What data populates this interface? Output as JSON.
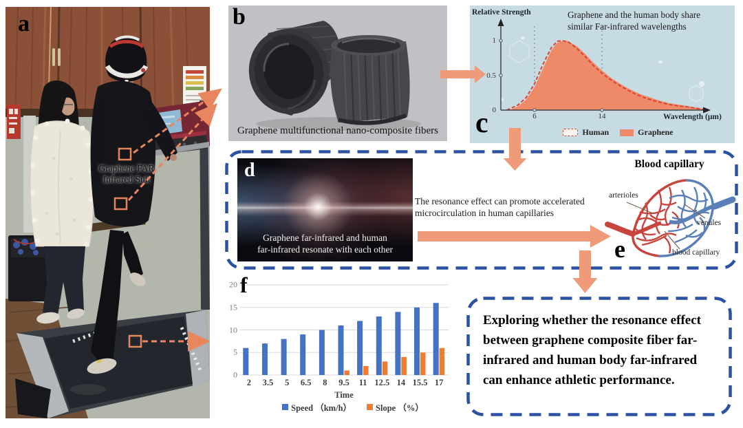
{
  "figure": {
    "type": "multi-panel scientific figure",
    "colors": {
      "flow_arrow": "#ef9b7a",
      "dashed_border_blue": "#2b52a3",
      "annotation_orange": "#e8875f",
      "panel_c_bg": "#c7dbe3",
      "graphene_fill": "#ef8a68",
      "human_dash_red": "#d94436",
      "bar_blue": "#4472c4",
      "bar_orange": "#ed7d31",
      "capillary_red": "#c8453d",
      "capillary_blue": "#5b80b8"
    }
  },
  "panels": {
    "a": {
      "label": "a",
      "annotation": [
        "Graphene FAR",
        "Infrared Suit"
      ]
    },
    "b": {
      "label": "b",
      "caption": "Graphene multifunctional nano-composite fibers"
    },
    "c": {
      "label": "c"
    },
    "d": {
      "label": "d",
      "caption": [
        "Graphene far-infrared and human",
        "far-infrared resonate with each other"
      ]
    },
    "e": {
      "label": "e",
      "title": "Blood capillary",
      "annotations": {
        "arterioles": "arterioles",
        "venules": "venules",
        "blood_capillary": "blood capillary"
      }
    },
    "f": {
      "label": "f"
    }
  },
  "flow": {
    "resonance": [
      "The resonance effect can promote accelerated",
      "microcirculation in human capillaries"
    ],
    "conclusion": "Exploring whether the resonance effect between graphene composite fiber far-infrared and human body far-infrared can enhance athletic performance."
  },
  "chart_data": [
    {
      "id": "far_infrared_spectrum",
      "type": "area",
      "title": "Graphene and the human body share similar Far-infrared wavelengths",
      "title_lines": [
        "Graphene and the human body share",
        "similar Far-infrared wavelengths"
      ],
      "xlabel": "Wavelength (μm)",
      "ylabel": "Relative Strength",
      "xlim": [
        2,
        26
      ],
      "ylim": [
        0,
        1.12
      ],
      "xticks": [
        6,
        14
      ],
      "yticks": [
        0,
        0.5,
        1
      ],
      "grid": "dotted vertical lines at xticks",
      "legend_position": "bottom",
      "legend": [
        {
          "name": "Human",
          "style": "dashed-red-outline"
        },
        {
          "name": "Graphene",
          "style": "filled-salmon"
        }
      ],
      "series": [
        {
          "name": "Graphene",
          "color": "#ef8a68",
          "x": [
            3,
            4,
            5,
            6,
            7,
            8,
            8.7,
            9.5,
            10,
            11,
            12,
            13,
            14,
            15,
            16,
            17,
            18,
            19,
            20,
            21,
            22,
            23,
            24,
            25,
            26
          ],
          "y": [
            0,
            0.05,
            0.15,
            0.33,
            0.6,
            0.86,
            0.97,
            1.0,
            0.99,
            0.92,
            0.81,
            0.68,
            0.57,
            0.47,
            0.39,
            0.32,
            0.26,
            0.21,
            0.17,
            0.13,
            0.1,
            0.08,
            0.06,
            0.04,
            0.02
          ]
        },
        {
          "name": "Human",
          "color": "#d94436",
          "x": [
            2.7,
            4,
            5,
            6,
            7,
            8,
            8.7,
            9.3,
            10,
            11,
            12,
            13,
            14,
            15,
            16,
            17,
            18,
            19,
            20,
            21,
            22,
            23,
            24,
            25,
            26
          ],
          "y": [
            0,
            0.07,
            0.18,
            0.38,
            0.66,
            0.9,
            0.99,
            1.0,
            0.98,
            0.89,
            0.77,
            0.64,
            0.53,
            0.44,
            0.36,
            0.29,
            0.23,
            0.18,
            0.14,
            0.11,
            0.08,
            0.06,
            0.05,
            0.03,
            0.01
          ]
        }
      ]
    },
    {
      "id": "treadmill_protocol",
      "type": "bar",
      "xlabel": "Time",
      "ylim": [
        0,
        20
      ],
      "yticks": [
        0,
        5,
        10,
        15,
        20
      ],
      "grid": "horizontal gray lines",
      "legend_position": "bottom",
      "categories": [
        "2",
        "3.5",
        "5",
        "6.5",
        "8",
        "9.5",
        "11",
        "12.5",
        "14",
        "15.5",
        "17"
      ],
      "series": [
        {
          "name": "Speed （km/h）",
          "color": "#4472c4",
          "values": [
            6,
            7,
            8,
            9,
            10,
            11,
            12,
            13,
            14,
            15,
            16
          ]
        },
        {
          "name": "Slope （%）",
          "color": "#ed7d31",
          "values": [
            0,
            0,
            0,
            0,
            0,
            1,
            2,
            3,
            4,
            5,
            6
          ]
        }
      ]
    }
  ]
}
